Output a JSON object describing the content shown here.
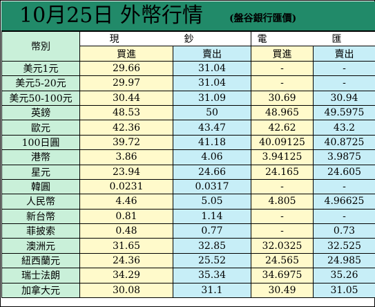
{
  "title": {
    "main": "10月25日 外幣行情",
    "sub": "(盤谷銀行匯價)"
  },
  "table": {
    "corner_label": "幣別",
    "cash_label": "現　鈔",
    "wire_label": "電　匯",
    "sub_headers": [
      "買進",
      "賣出",
      "買進",
      "賣出"
    ],
    "rows": [
      [
        "美元1元",
        "29.66",
        "31.04",
        "-",
        "-"
      ],
      [
        "美元5-20元",
        "29.97",
        "31.04",
        "-",
        "-"
      ],
      [
        "美元50-100元",
        "30.44",
        "31.09",
        "30.69",
        "30.94"
      ],
      [
        "英鎊",
        "48.53",
        "50",
        "48.965",
        "49.5975"
      ],
      [
        "歐元",
        "42.36",
        "43.47",
        "42.62",
        "43.2"
      ],
      [
        "100日圓",
        "39.72",
        "41.18",
        "40.09125",
        "40.8725"
      ],
      [
        "港幣",
        "3.86",
        "4.06",
        "3.94125",
        "3.9875"
      ],
      [
        "星元",
        "23.94",
        "24.66",
        "24.165",
        "24.605"
      ],
      [
        "韓圓",
        "0.0231",
        "0.0317",
        "-",
        "-"
      ],
      [
        "人民幣",
        "4.46",
        "5.05",
        "4.805",
        "4.96625"
      ],
      [
        "新台幣",
        "0.81",
        "1.14",
        "-",
        "-"
      ],
      [
        "菲披索",
        "0.48",
        "0.77",
        "-",
        "0.73"
      ],
      [
        "澳洲元",
        "31.65",
        "32.85",
        "32.0325",
        "32.525"
      ],
      [
        "紐西蘭元",
        "24.36",
        "25.52",
        "24.565",
        "24.985"
      ],
      [
        "瑞士法朗",
        "34.29",
        "35.34",
        "34.6975",
        "35.26"
      ],
      [
        "加拿大元",
        "30.08",
        "31.1",
        "30.49",
        "31.05"
      ]
    ]
  }
}
